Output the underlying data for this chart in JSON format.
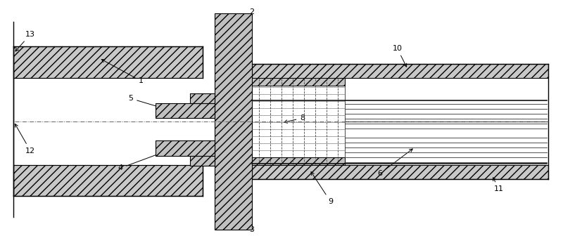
{
  "bg_color": "#ffffff",
  "line_color": "#000000",
  "fig_width": 8.0,
  "fig_height": 3.46,
  "dpi": 100
}
